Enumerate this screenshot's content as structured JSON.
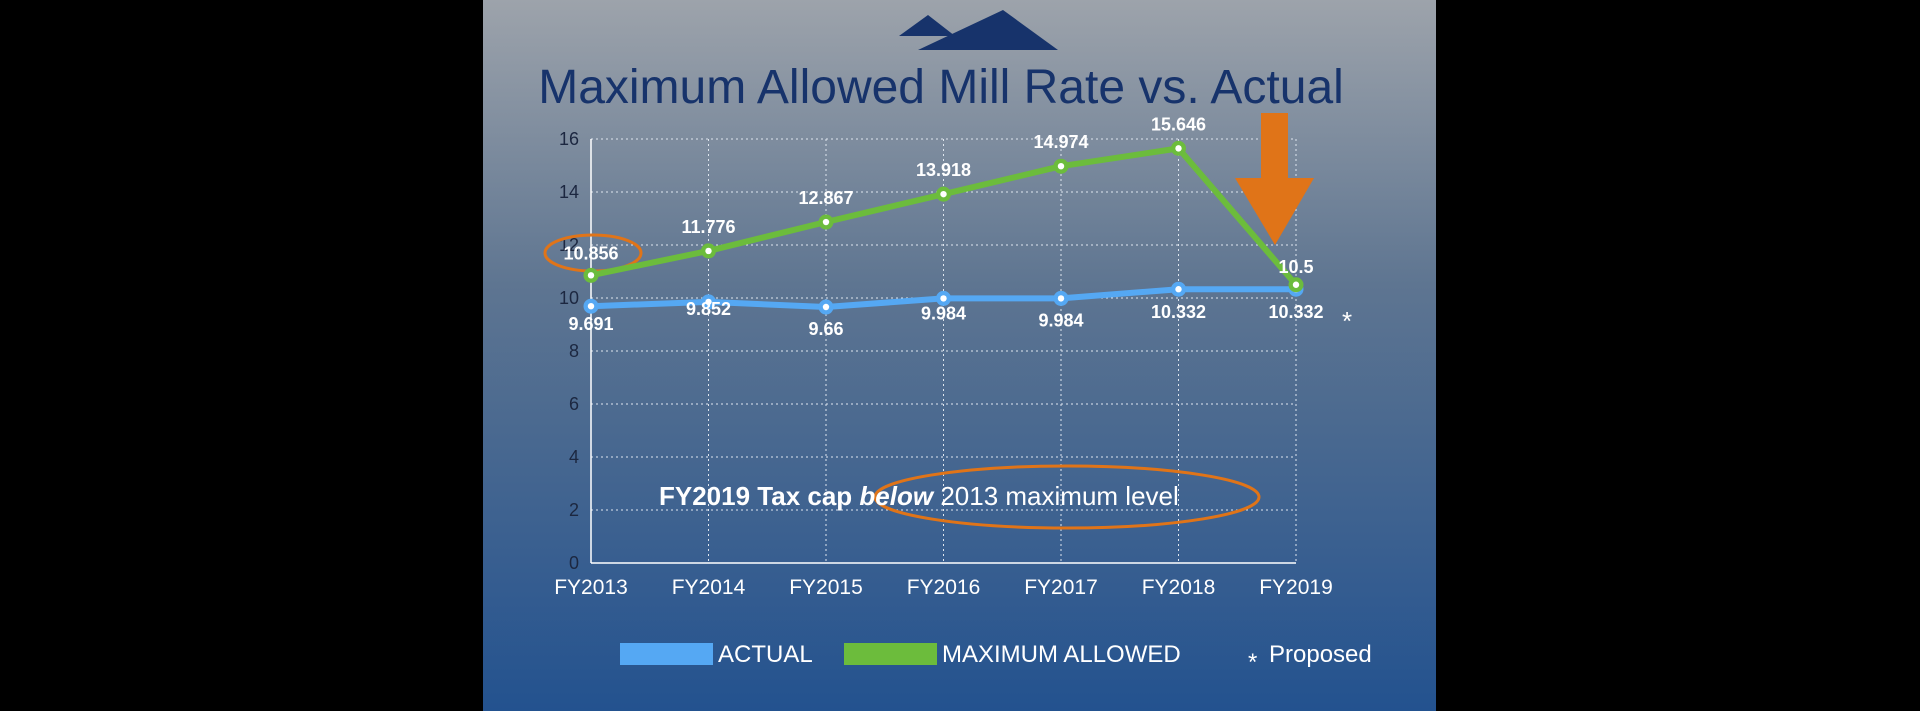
{
  "colors": {
    "actual": "#55a8f3",
    "maximum": "#6cbc3c",
    "highlight": "#e07418",
    "logo": "#17336b"
  },
  "logo_icon": "mountain-logo-icon",
  "chart_data": {
    "type": "line",
    "title": "Maximum Allowed Mill Rate vs. Actual",
    "categories": [
      "FY2013",
      "FY2014",
      "FY2015",
      "FY2016",
      "FY2017",
      "FY2018",
      "FY2019"
    ],
    "ylim": [
      0,
      16
    ],
    "yticks": [
      "0",
      "2",
      "4",
      "6",
      "8",
      "10",
      "12",
      "14",
      "16"
    ],
    "grid": true,
    "series": [
      {
        "name": "ACTUAL",
        "values": [
          9.691,
          9.852,
          9.66,
          9.984,
          9.984,
          10.332,
          10.332
        ],
        "labels": [
          "9.691",
          "9.852",
          "9.66",
          "9.984",
          "9.984",
          "10.332",
          "10.332"
        ]
      },
      {
        "name": "MAXIMUM ALLOWED",
        "values": [
          10.856,
          11.776,
          12.867,
          13.918,
          14.974,
          15.646,
          10.5
        ],
        "labels": [
          "10.856",
          "11.776",
          "12.867",
          "13.918",
          "14.974",
          "15.646",
          "10.5"
        ]
      }
    ],
    "proposed_marker": "*",
    "annotation": {
      "bold": "FY2019 Tax cap",
      "italic": "below",
      "rest": "2013 maximum level"
    },
    "legend": {
      "actual": "ACTUAL",
      "maximum": "MAXIMUM ALLOWED",
      "proposed_symbol": "*",
      "proposed": "Proposed"
    }
  }
}
